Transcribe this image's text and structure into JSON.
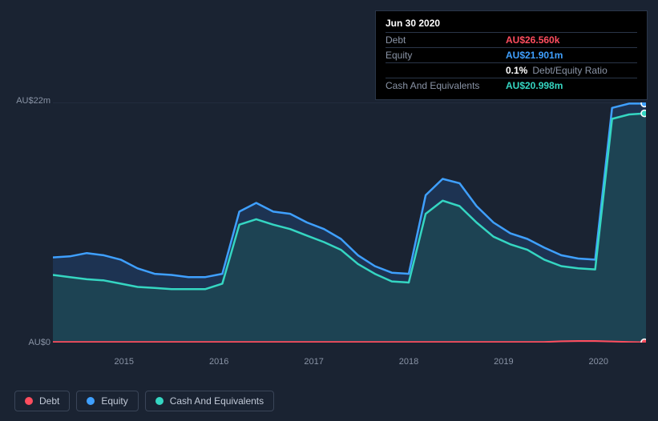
{
  "tooltip": {
    "date": "Jun 30 2020",
    "rows": [
      {
        "label": "Debt",
        "value": "AU$26.560k",
        "color": "#ff4d5e"
      },
      {
        "label": "Equity",
        "value": "AU$21.901m",
        "color": "#3fa0ff"
      },
      {
        "label": "",
        "value": "0.1%",
        "extra": "Debt/Equity Ratio",
        "color": "#ffffff"
      },
      {
        "label": "Cash And Equivalents",
        "value": "AU$20.998m",
        "color": "#35d6c2"
      }
    ]
  },
  "chart": {
    "type": "area",
    "background_color": "#1a2332",
    "grid_color": "#2a3548",
    "y_axis": {
      "top_label": "AU$22m",
      "bottom_label": "AU$0",
      "min": 0,
      "max": 22
    },
    "x_axis": {
      "labels": [
        "2015",
        "2016",
        "2017",
        "2018",
        "2019",
        "2020"
      ],
      "positions_pct": [
        12,
        28,
        44,
        60,
        76,
        92
      ]
    },
    "series": [
      {
        "name": "Equity",
        "color": "#3fa0ff",
        "fill": "#1f3a5f",
        "fill_opacity": 0.7,
        "line_width": 2.5,
        "values": [
          7.8,
          7.9,
          8.2,
          8.0,
          7.6,
          6.8,
          6.3,
          6.2,
          6.0,
          6.0,
          6.3,
          12.0,
          12.8,
          12.0,
          11.8,
          11.0,
          10.4,
          9.5,
          8.0,
          7.0,
          6.4,
          6.3,
          13.5,
          15.0,
          14.6,
          12.5,
          11.0,
          10.0,
          9.5,
          8.7,
          8.0,
          7.7,
          7.6,
          21.5,
          21.9,
          21.9
        ],
        "marker_end": true
      },
      {
        "name": "Cash And Equivalents",
        "color": "#35d6c2",
        "fill": "#1e4a54",
        "fill_opacity": 0.75,
        "line_width": 2.5,
        "values": [
          6.2,
          6.0,
          5.8,
          5.7,
          5.4,
          5.1,
          5.0,
          4.9,
          4.9,
          4.9,
          5.4,
          10.8,
          11.3,
          10.8,
          10.4,
          9.8,
          9.2,
          8.5,
          7.2,
          6.3,
          5.6,
          5.5,
          11.8,
          13.0,
          12.5,
          11.0,
          9.7,
          9.0,
          8.5,
          7.6,
          7.0,
          6.8,
          6.7,
          20.5,
          20.9,
          21.0
        ],
        "marker_end": true
      },
      {
        "name": "Debt",
        "color": "#ff4d5e",
        "fill": "#4a2030",
        "fill_opacity": 0.6,
        "line_width": 2,
        "values": [
          0.05,
          0.05,
          0.05,
          0.05,
          0.05,
          0.05,
          0.05,
          0.05,
          0.05,
          0.05,
          0.05,
          0.05,
          0.05,
          0.05,
          0.05,
          0.05,
          0.05,
          0.05,
          0.05,
          0.05,
          0.05,
          0.05,
          0.05,
          0.05,
          0.05,
          0.05,
          0.05,
          0.05,
          0.05,
          0.05,
          0.12,
          0.15,
          0.15,
          0.1,
          0.05,
          0.027
        ],
        "marker_end": true
      }
    ],
    "legend": [
      {
        "label": "Debt",
        "color": "#ff4d5e"
      },
      {
        "label": "Equity",
        "color": "#3fa0ff"
      },
      {
        "label": "Cash And Equivalents",
        "color": "#35d6c2"
      }
    ]
  }
}
